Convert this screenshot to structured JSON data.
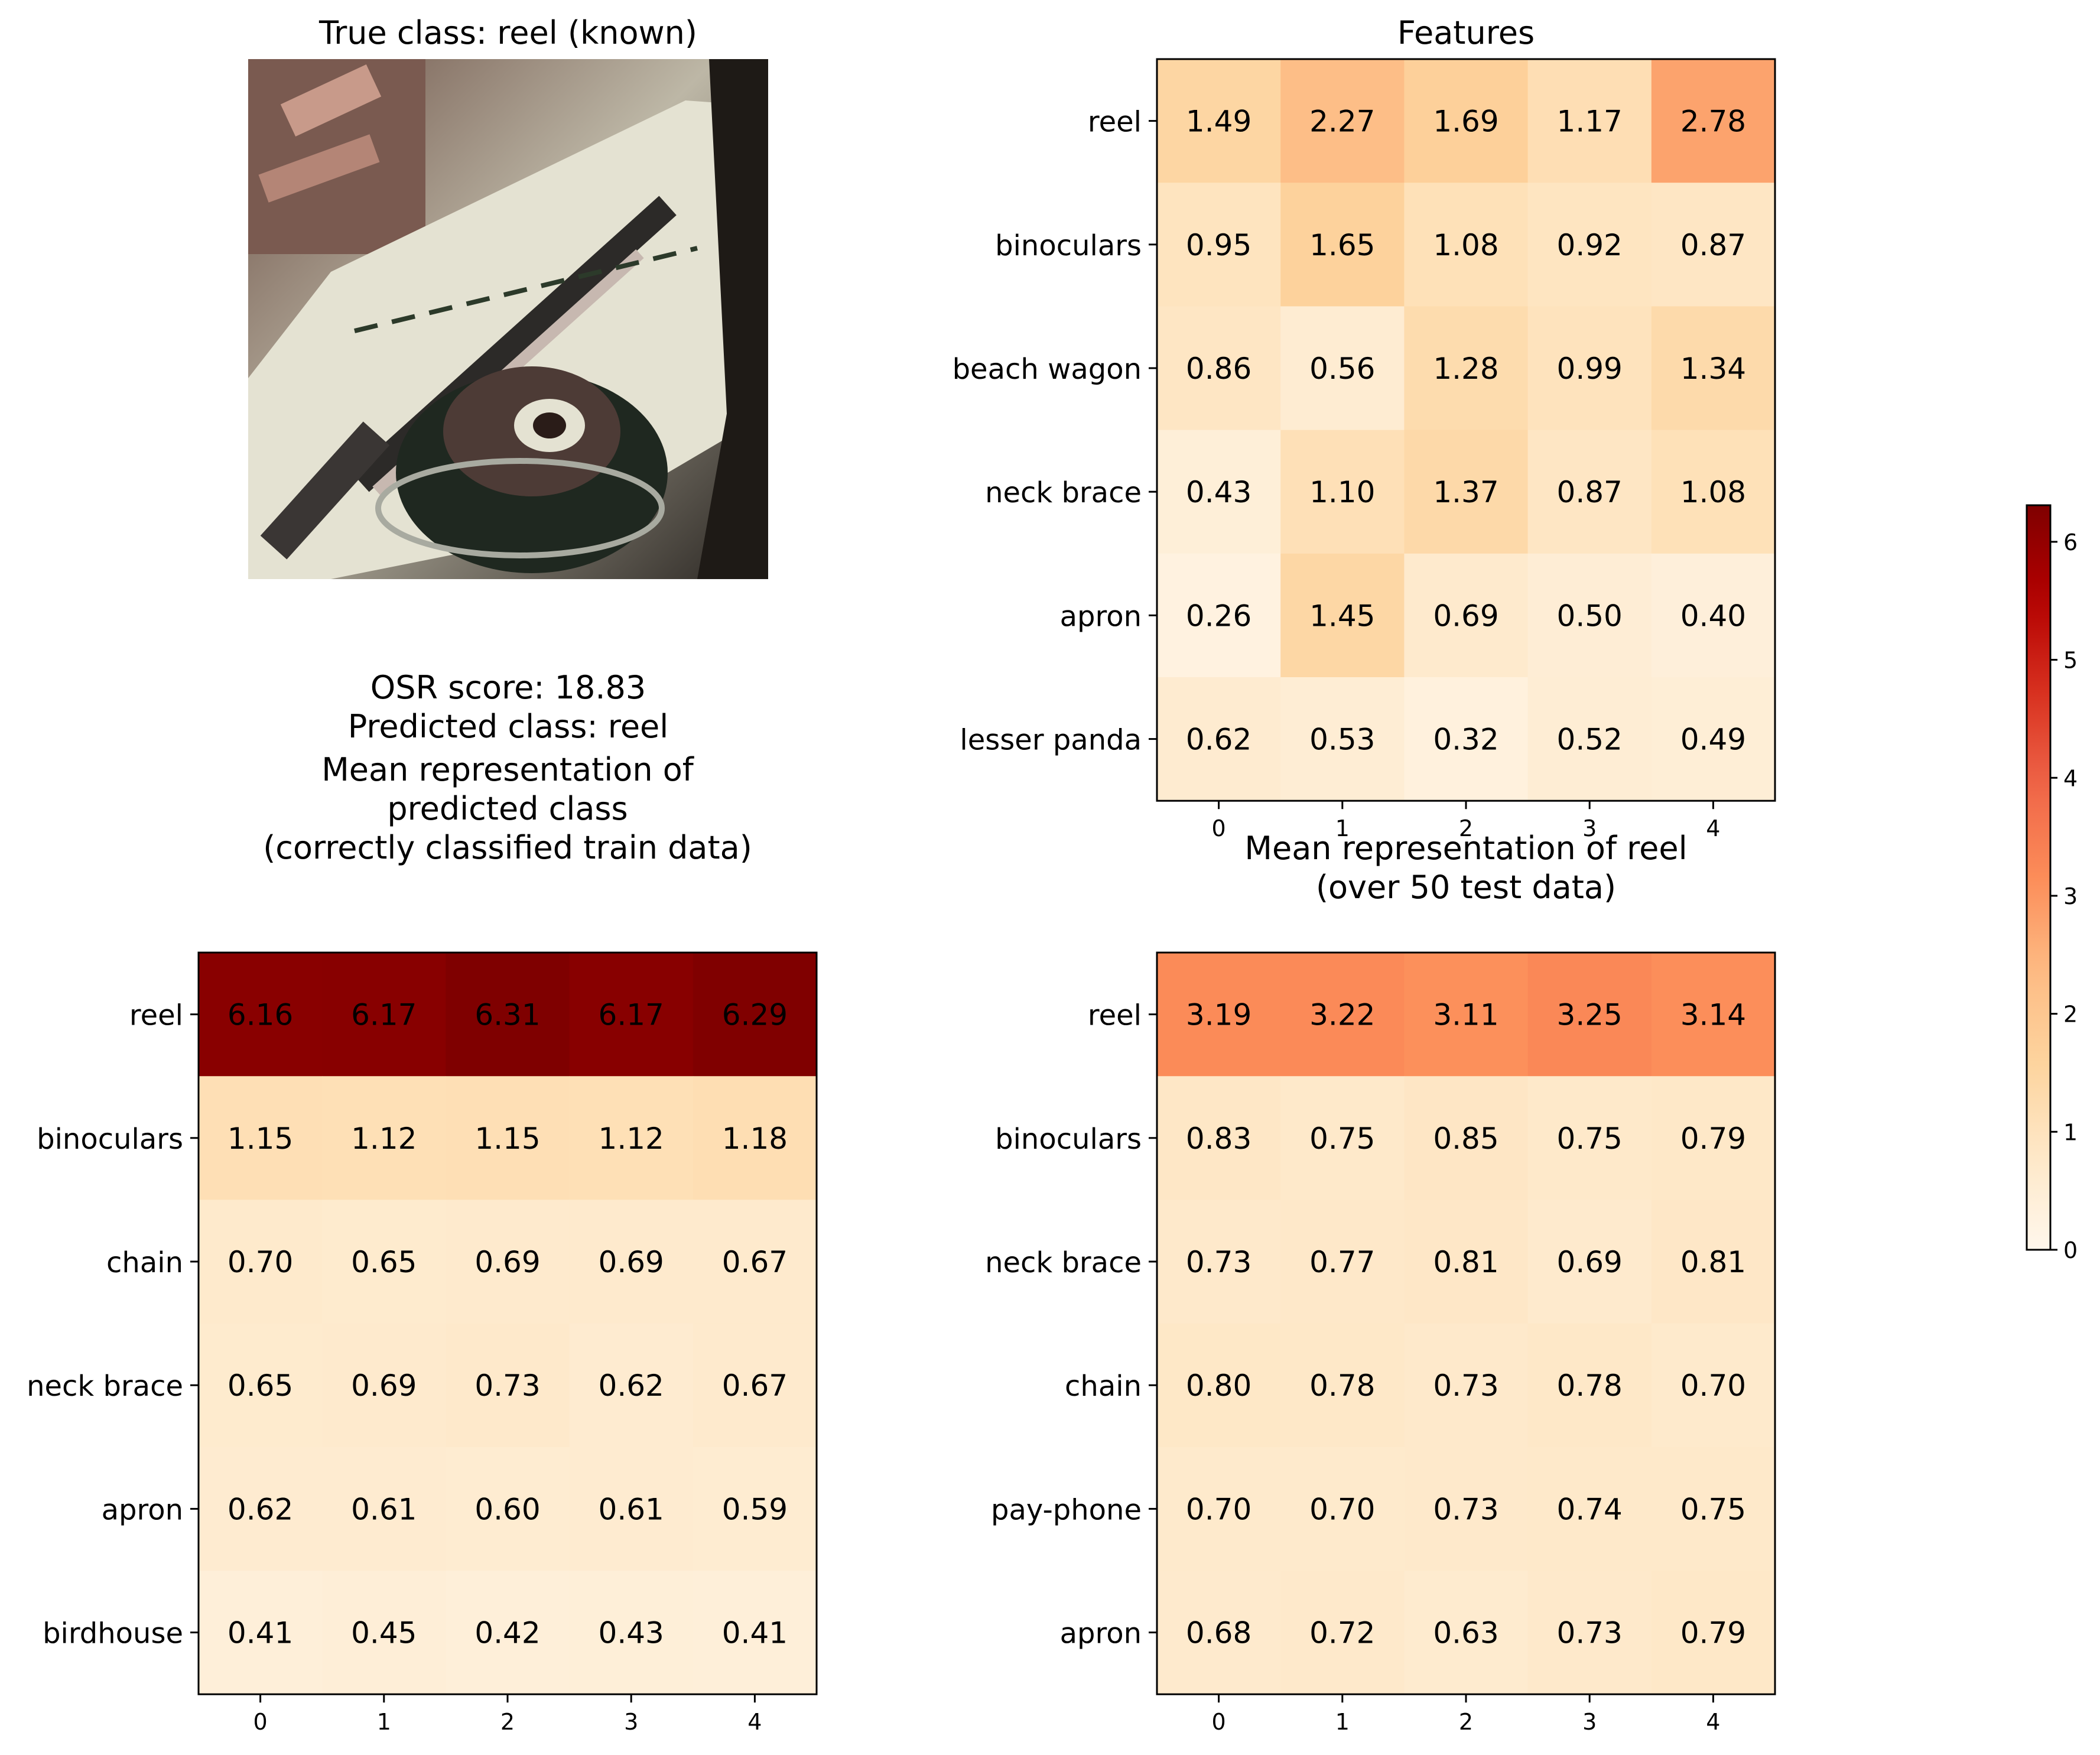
{
  "sample_panel": {
    "title": "True class: reel (known)",
    "image_name": "reel-photo",
    "osr_line": "OSR score: 18.83",
    "predicted_line": "Predicted class: reel"
  },
  "chart_data": [
    {
      "type": "heatmap",
      "title": "Features",
      "x": [
        "0",
        "1",
        "2",
        "3",
        "4"
      ],
      "y": [
        "reel",
        "binoculars",
        "beach wagon",
        "neck brace",
        "apron",
        "lesser panda"
      ],
      "values": [
        [
          1.49,
          2.27,
          1.69,
          1.17,
          2.78
        ],
        [
          0.95,
          1.65,
          1.08,
          0.92,
          0.87
        ],
        [
          0.86,
          0.56,
          1.28,
          0.99,
          1.34
        ],
        [
          0.43,
          1.1,
          1.37,
          0.87,
          1.08
        ],
        [
          0.26,
          1.45,
          0.69,
          0.5,
          0.4
        ],
        [
          0.62,
          0.53,
          0.32,
          0.52,
          0.49
        ]
      ]
    },
    {
      "type": "heatmap",
      "title": [
        "Mean representation of",
        "predicted class",
        "(correctly classified train data)"
      ],
      "x": [
        "0",
        "1",
        "2",
        "3",
        "4"
      ],
      "y": [
        "reel",
        "binoculars",
        "chain",
        "neck brace",
        "apron",
        "birdhouse"
      ],
      "values": [
        [
          6.16,
          6.17,
          6.31,
          6.17,
          6.29
        ],
        [
          1.15,
          1.12,
          1.15,
          1.12,
          1.18
        ],
        [
          0.7,
          0.65,
          0.69,
          0.69,
          0.67
        ],
        [
          0.65,
          0.69,
          0.73,
          0.62,
          0.67
        ],
        [
          0.62,
          0.61,
          0.6,
          0.61,
          0.59
        ],
        [
          0.41,
          0.45,
          0.42,
          0.43,
          0.41
        ]
      ]
    },
    {
      "type": "heatmap",
      "title": [
        "Mean representation of reel",
        "(over 50 test data)"
      ],
      "x": [
        "0",
        "1",
        "2",
        "3",
        "4"
      ],
      "y": [
        "reel",
        "binoculars",
        "neck brace",
        "chain",
        "pay-phone",
        "apron"
      ],
      "values": [
        [
          3.19,
          3.22,
          3.11,
          3.25,
          3.14
        ],
        [
          0.83,
          0.75,
          0.85,
          0.75,
          0.79
        ],
        [
          0.73,
          0.77,
          0.81,
          0.69,
          0.81
        ],
        [
          0.8,
          0.78,
          0.73,
          0.78,
          0.7
        ],
        [
          0.7,
          0.7,
          0.73,
          0.74,
          0.75
        ],
        [
          0.68,
          0.72,
          0.63,
          0.73,
          0.79
        ]
      ]
    }
  ],
  "colorbar": {
    "colormap": "OrRd",
    "vmin": 0,
    "vmax": 6.31,
    "ticks": [
      "0",
      "1",
      "2",
      "3",
      "4",
      "5",
      "6"
    ]
  }
}
